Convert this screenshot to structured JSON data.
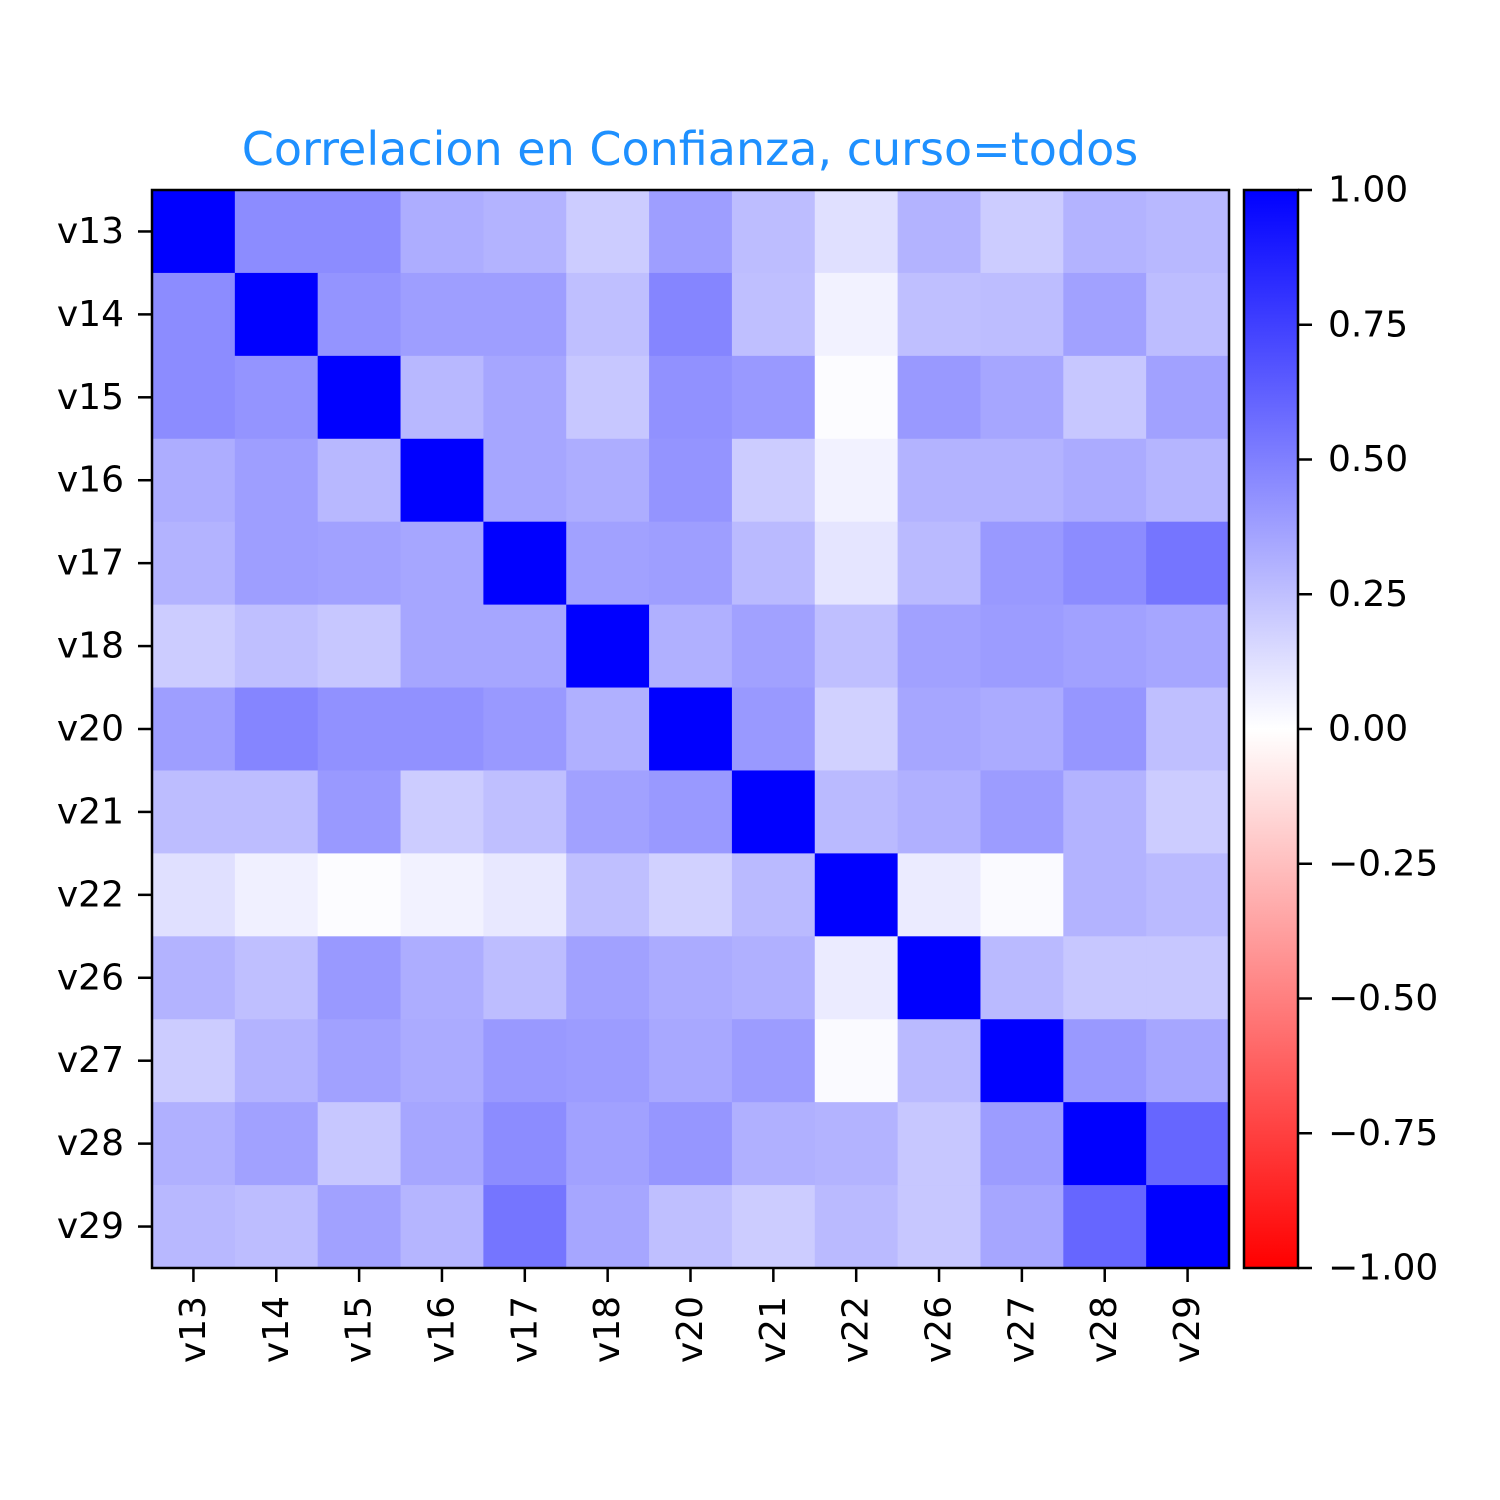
{
  "chart_data": {
    "type": "heatmap",
    "title": "Correlacion en Confianza, curso=todos",
    "variables": [
      "v13",
      "v14",
      "v15",
      "v16",
      "v17",
      "v18",
      "v20",
      "v21",
      "v22",
      "v26",
      "v27",
      "v28",
      "v29"
    ],
    "matrix": [
      [
        1.0,
        0.45,
        0.45,
        0.32,
        0.3,
        0.2,
        0.38,
        0.26,
        0.12,
        0.3,
        0.2,
        0.3,
        0.28
      ],
      [
        0.45,
        1.0,
        0.42,
        0.38,
        0.38,
        0.25,
        0.48,
        0.25,
        0.05,
        0.25,
        0.26,
        0.37,
        0.26
      ],
      [
        0.45,
        0.42,
        1.0,
        0.28,
        0.35,
        0.22,
        0.43,
        0.4,
        0.01,
        0.4,
        0.35,
        0.22,
        0.37
      ],
      [
        0.32,
        0.38,
        0.28,
        1.0,
        0.35,
        0.32,
        0.42,
        0.2,
        0.05,
        0.3,
        0.3,
        0.33,
        0.29
      ],
      [
        0.3,
        0.38,
        0.37,
        0.35,
        1.0,
        0.37,
        0.38,
        0.27,
        0.1,
        0.27,
        0.4,
        0.45,
        0.54
      ],
      [
        0.2,
        0.25,
        0.22,
        0.35,
        0.35,
        1.0,
        0.31,
        0.37,
        0.25,
        0.37,
        0.39,
        0.37,
        0.35
      ],
      [
        0.38,
        0.48,
        0.43,
        0.43,
        0.4,
        0.31,
        1.0,
        0.4,
        0.18,
        0.35,
        0.33,
        0.41,
        0.25
      ],
      [
        0.26,
        0.26,
        0.4,
        0.2,
        0.25,
        0.37,
        0.4,
        1.0,
        0.27,
        0.31,
        0.39,
        0.3,
        0.2
      ],
      [
        0.12,
        0.06,
        0.01,
        0.05,
        0.09,
        0.25,
        0.18,
        0.27,
        1.0,
        0.08,
        0.02,
        0.3,
        0.27
      ],
      [
        0.3,
        0.25,
        0.4,
        0.32,
        0.26,
        0.37,
        0.33,
        0.31,
        0.08,
        1.0,
        0.27,
        0.22,
        0.22
      ],
      [
        0.2,
        0.3,
        0.37,
        0.33,
        0.4,
        0.39,
        0.34,
        0.39,
        0.02,
        0.27,
        1.0,
        0.4,
        0.35
      ],
      [
        0.31,
        0.37,
        0.22,
        0.35,
        0.45,
        0.37,
        0.41,
        0.31,
        0.3,
        0.22,
        0.39,
        1.0,
        0.6
      ],
      [
        0.28,
        0.26,
        0.37,
        0.29,
        0.54,
        0.35,
        0.25,
        0.2,
        0.27,
        0.22,
        0.35,
        0.6,
        1.0
      ]
    ],
    "colorbar": {
      "min": -1.0,
      "max": 1.0,
      "ticks": [
        1.0,
        0.75,
        0.5,
        0.25,
        0.0,
        -0.25,
        -0.5,
        -0.75,
        -1.0
      ],
      "tick_labels": [
        "1.00",
        "0.75",
        "0.50",
        "0.25",
        "0.00",
        "−0.25",
        "−0.50",
        "−0.75",
        "−1.00"
      ],
      "colors": {
        "low": "#ff0000",
        "mid": "#ffffff",
        "high": "#0000ff"
      }
    }
  }
}
